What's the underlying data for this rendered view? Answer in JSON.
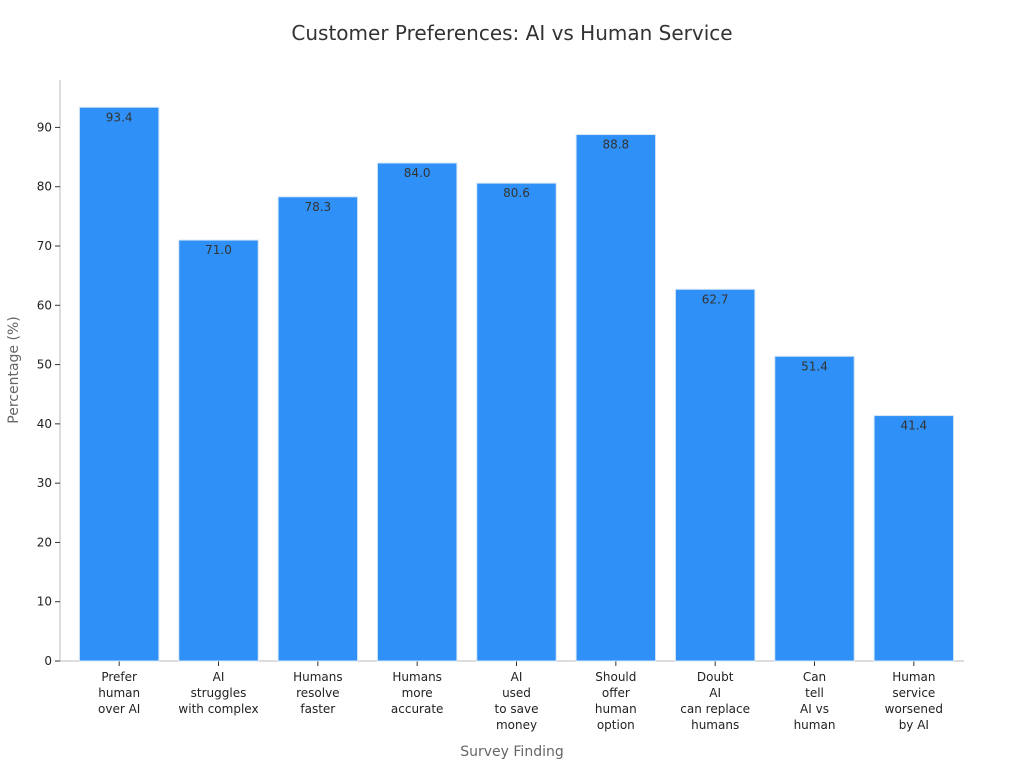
{
  "chart_data": {
    "type": "bar",
    "title": "Customer Preferences: AI vs Human Service",
    "xlabel": "Survey Finding",
    "ylabel": "Percentage (%)",
    "ylim": [
      0,
      98
    ],
    "yticks": [
      0,
      10,
      20,
      30,
      40,
      50,
      60,
      70,
      80,
      90
    ],
    "grid": false,
    "categories": [
      [
        "Prefer",
        "human",
        "over AI"
      ],
      [
        "AI",
        "struggles",
        "with complex"
      ],
      [
        "Humans",
        "resolve",
        "faster"
      ],
      [
        "Humans",
        "more",
        "accurate"
      ],
      [
        "AI",
        "used",
        "to save",
        "money"
      ],
      [
        "Should",
        "offer",
        "human",
        "option"
      ],
      [
        "Doubt",
        "AI",
        "can replace",
        "humans"
      ],
      [
        "Can",
        "tell",
        "AI vs",
        "human"
      ],
      [
        "Human",
        "service",
        "worsened",
        "by AI"
      ]
    ],
    "values": [
      93.4,
      71.0,
      78.3,
      84.0,
      80.6,
      88.8,
      62.7,
      51.4,
      41.4
    ],
    "value_labels": [
      "93.4",
      "71.0",
      "78.3",
      "84.0",
      "80.6",
      "88.8",
      "62.7",
      "51.4",
      "41.4"
    ],
    "colors": {
      "bar": "#2f91f7",
      "bar_edge": "#d6e6f7",
      "axis": "#bbbbbb"
    }
  }
}
